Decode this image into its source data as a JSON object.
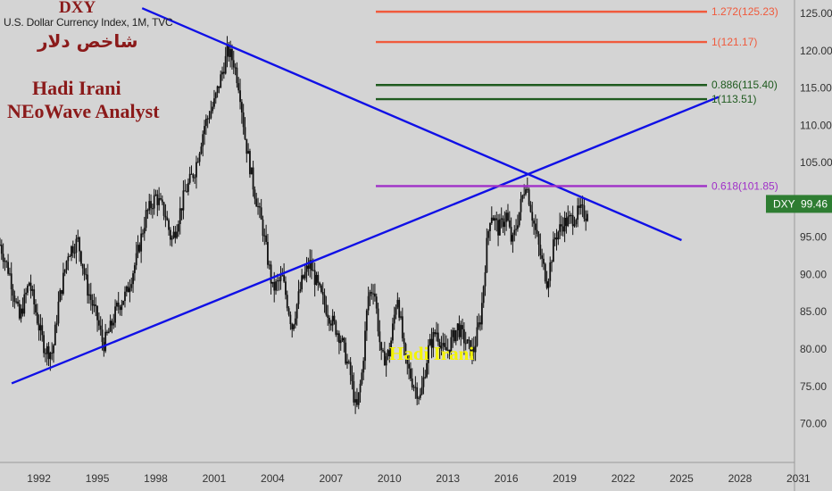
{
  "header": {
    "symbol_line": "U.S. Dollar Currency Index, 1M, TVC",
    "watermark_title": "DXY",
    "watermark_arabic": "شاخص دلار",
    "author_name": "Hadi Irani",
    "author_role": "NEoWave Analyst",
    "signature": "Hadi Irani"
  },
  "colors": {
    "background": "#d4d4d4",
    "candles": "#111111",
    "trendline": "#1010e6",
    "fib_red": "#f05a3c",
    "fib_green": "#1e5a1e",
    "fib_purple": "#a030c8",
    "price_tag": "#2e7d32",
    "axis_text": "#333333"
  },
  "chart_data": {
    "type": "candlestick",
    "title": "U.S. Dollar Currency Index, 1M, TVC",
    "timeframe": "1M",
    "x_ticks": [
      "1992",
      "1995",
      "1998",
      "2001",
      "2004",
      "2007",
      "2010",
      "2013",
      "2016",
      "2019",
      "2022",
      "2025",
      "2028",
      "2031"
    ],
    "y_ticks": [
      "125.00",
      "120.00",
      "115.00",
      "110.00",
      "105.00",
      "100.00",
      "95.00",
      "90.00",
      "85.00",
      "80.00",
      "75.00",
      "70.00"
    ],
    "y_tick_values": [
      125,
      120,
      115,
      110,
      105,
      100,
      95,
      90,
      85,
      80,
      75,
      70
    ],
    "ylim": [
      64.8,
      126.8
    ],
    "xlim": [
      1990.0,
      2030.8
    ],
    "last_price": {
      "label": "DXY",
      "value": "99.46"
    },
    "fib_levels": [
      {
        "label": "1.272(125.23)",
        "value": 125.23,
        "color": "fib_red",
        "x_start": 2009.3
      },
      {
        "label": "1(121.17)",
        "value": 121.17,
        "color": "fib_red",
        "x_start": 2009.3
      },
      {
        "label": "0.886(115.40)",
        "value": 115.4,
        "color": "fib_green",
        "x_start": 2009.3
      },
      {
        "label": "1(113.51)",
        "value": 113.51,
        "color": "fib_green",
        "x_start": 2009.3
      },
      {
        "label": "0.618(101.85)",
        "value": 101.85,
        "color": "fib_purple",
        "x_start": 2009.3
      }
    ],
    "trendlines": [
      {
        "from": [
          1997.3,
          125.7
        ],
        "to": [
          2025.0,
          94.6
        ]
      },
      {
        "from": [
          1990.6,
          75.4
        ],
        "to": [
          2026.9,
          113.8
        ]
      }
    ],
    "series": [
      {
        "type": "monthly-close",
        "points": [
          [
            1990.0,
            94.0
          ],
          [
            1990.5,
            90.0
          ],
          [
            1991.0,
            84.0
          ],
          [
            1991.5,
            89.0
          ],
          [
            1992.0,
            83.0
          ],
          [
            1992.3,
            80.0
          ],
          [
            1992.7,
            79.5
          ],
          [
            1993.0,
            86.0
          ],
          [
            1993.5,
            93.0
          ],
          [
            1994.0,
            94.5
          ],
          [
            1994.5,
            88.0
          ],
          [
            1995.0,
            84.0
          ],
          [
            1995.3,
            80.5
          ],
          [
            1995.7,
            83.0
          ],
          [
            1996.0,
            85.5
          ],
          [
            1996.5,
            87.5
          ],
          [
            1997.0,
            92.0
          ],
          [
            1997.5,
            98.0
          ],
          [
            1998.0,
            100.5
          ],
          [
            1998.5,
            98.0
          ],
          [
            1998.8,
            94.5
          ],
          [
            1999.0,
            96.0
          ],
          [
            1999.5,
            101.0
          ],
          [
            2000.0,
            104.0
          ],
          [
            2000.5,
            110.0
          ],
          [
            2001.0,
            113.0
          ],
          [
            2001.5,
            118.0
          ],
          [
            2001.7,
            120.0
          ],
          [
            2002.0,
            118.5
          ],
          [
            2002.3,
            115.0
          ],
          [
            2002.6,
            108.0
          ],
          [
            2003.0,
            102.0
          ],
          [
            2003.5,
            96.0
          ],
          [
            2004.0,
            88.0
          ],
          [
            2004.5,
            89.5
          ],
          [
            2005.0,
            83.0
          ],
          [
            2005.5,
            89.0
          ],
          [
            2005.9,
            91.5
          ],
          [
            2006.5,
            87.0
          ],
          [
            2007.0,
            84.0
          ],
          [
            2007.5,
            81.5
          ],
          [
            2008.0,
            76.5
          ],
          [
            2008.3,
            71.5
          ],
          [
            2008.6,
            77.0
          ],
          [
            2008.9,
            87.0
          ],
          [
            2009.2,
            88.5
          ],
          [
            2009.6,
            78.5
          ],
          [
            2010.0,
            79.5
          ],
          [
            2010.4,
            87.5
          ],
          [
            2010.8,
            78.5
          ],
          [
            2011.2,
            75.5
          ],
          [
            2011.6,
            73.5
          ],
          [
            2012.0,
            80.0
          ],
          [
            2012.4,
            82.5
          ],
          [
            2012.8,
            79.5
          ],
          [
            2013.0,
            80.0
          ],
          [
            2013.5,
            83.0
          ],
          [
            2014.0,
            80.5
          ],
          [
            2014.3,
            79.5
          ],
          [
            2014.7,
            84.5
          ],
          [
            2015.0,
            94.0
          ],
          [
            2015.2,
            98.5
          ],
          [
            2015.6,
            96.0
          ],
          [
            2016.0,
            98.0
          ],
          [
            2016.3,
            94.0
          ],
          [
            2016.8,
            100.0
          ],
          [
            2017.0,
            102.5
          ],
          [
            2017.4,
            97.0
          ],
          [
            2017.8,
            92.0
          ],
          [
            2018.1,
            89.0
          ],
          [
            2018.5,
            95.0
          ],
          [
            2018.9,
            96.8
          ],
          [
            2019.4,
            97.5
          ],
          [
            2019.8,
            98.5
          ],
          [
            2020.1,
            98.0
          ],
          [
            2020.2,
            99.46
          ]
        ]
      }
    ]
  }
}
